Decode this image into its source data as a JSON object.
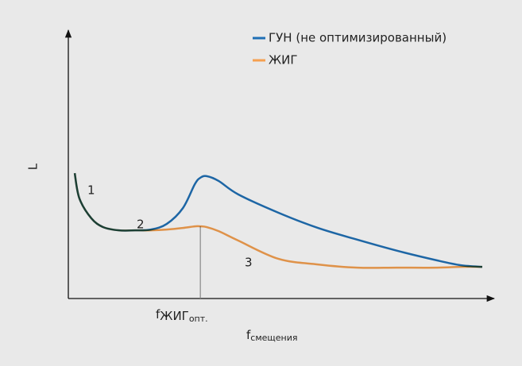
{
  "chart_data": {
    "type": "line",
    "ylabel": "L",
    "xlabel": {
      "main": "f",
      "sub": "смещения"
    },
    "marker_label": {
      "main": "f",
      "sub": "ЖИГ",
      "subsub": "опт."
    },
    "annotations": [
      "1",
      "2",
      "3"
    ],
    "xlim": [
      0,
      100
    ],
    "ylim": [
      0,
      100
    ],
    "x": [
      1.5,
      2.6,
      5.4,
      8.2,
      11.9,
      15.7,
      19.4,
      23.1,
      26.9,
      29.7,
      31.0,
      32.5,
      35.3,
      39.9,
      49.3,
      58.6,
      67.9,
      77.2,
      86.6,
      92.2,
      97.2
    ],
    "series": [
      {
        "name": "ГУН (не оптимизированный)",
        "color": "#1f6fb5",
        "values": [
          46.7,
          37.3,
          29.9,
          26.6,
          25.4,
          25.4,
          25.7,
          27.8,
          33.7,
          42.6,
          45.0,
          45.6,
          43.8,
          38.8,
          32.0,
          26.3,
          21.9,
          17.8,
          14.2,
          12.4,
          11.8
        ]
      },
      {
        "name": "ЖИГ",
        "color": "#f5a050",
        "values": [
          46.7,
          37.3,
          29.9,
          26.6,
          25.4,
          25.4,
          25.4,
          25.7,
          26.3,
          26.9,
          26.9,
          26.6,
          25.1,
          21.6,
          14.8,
          12.7,
          11.5,
          11.5,
          11.5,
          11.8,
          11.8
        ]
      }
    ],
    "marker_index": 10,
    "legend": "top-right"
  }
}
